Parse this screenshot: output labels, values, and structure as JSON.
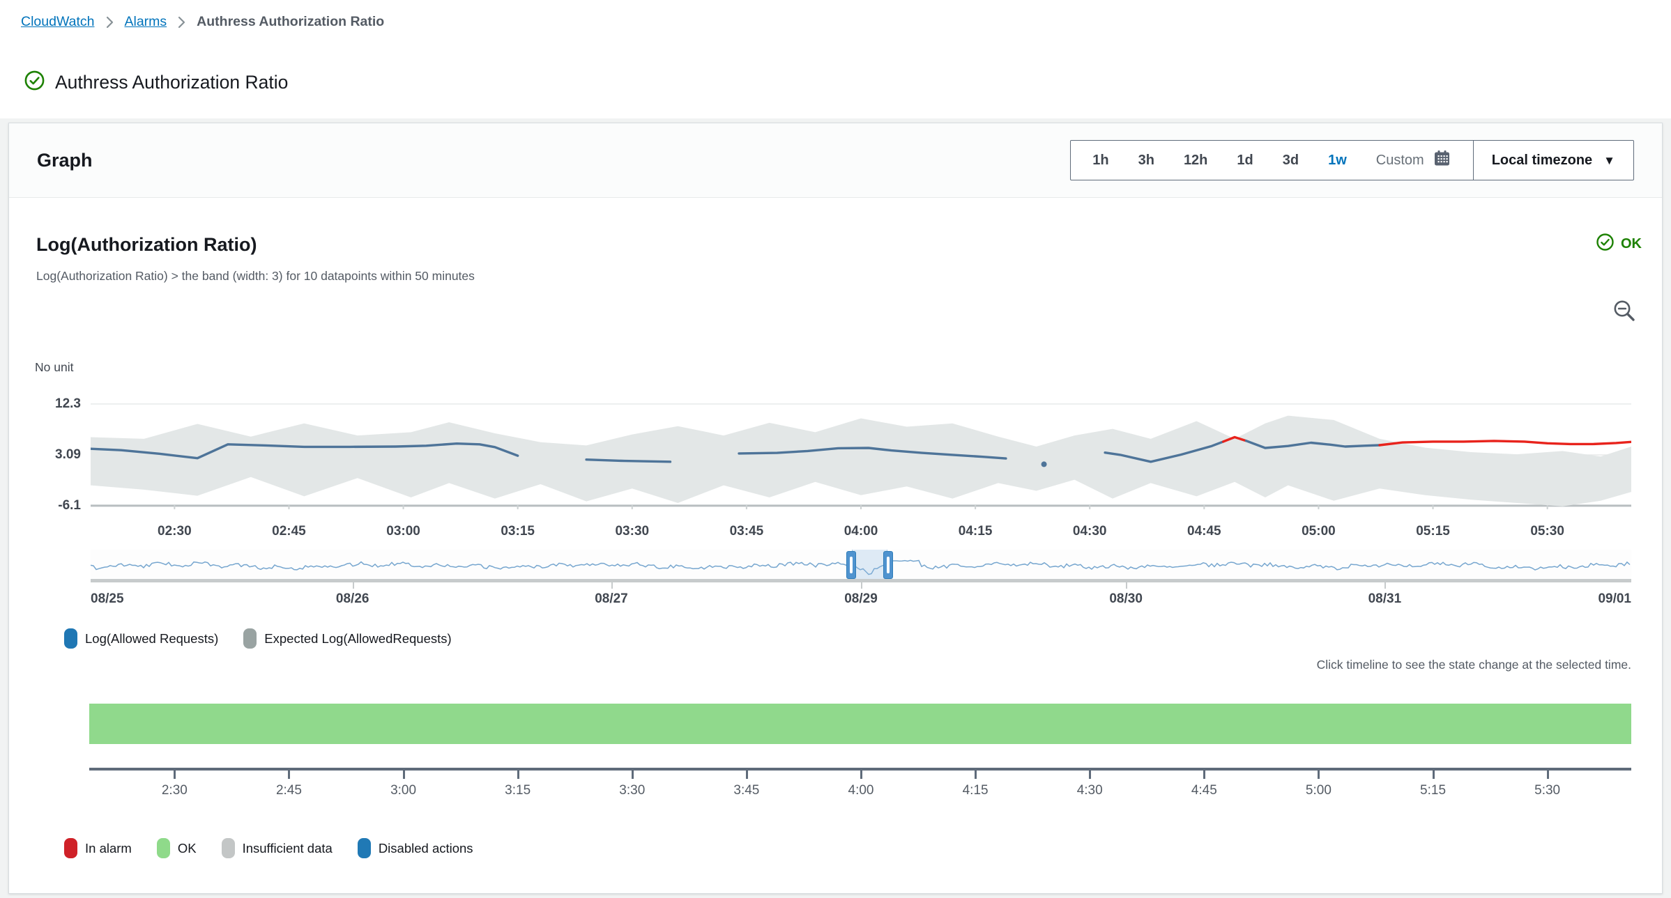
{
  "breadcrumb": {
    "items": [
      {
        "label": "CloudWatch",
        "link": true
      },
      {
        "label": "Alarms",
        "link": true
      },
      {
        "label": "Authress Authorization Ratio",
        "link": false
      }
    ]
  },
  "page": {
    "title": "Authress Authorization Ratio",
    "status": "OK"
  },
  "panel": {
    "title": "Graph",
    "range_buttons": [
      {
        "label": "1h",
        "selected": false
      },
      {
        "label": "3h",
        "selected": false
      },
      {
        "label": "12h",
        "selected": false
      },
      {
        "label": "1d",
        "selected": false
      },
      {
        "label": "3d",
        "selected": false
      },
      {
        "label": "1w",
        "selected": true
      },
      {
        "label": "Custom",
        "selected": false,
        "muted": true,
        "icon": "calendar"
      }
    ],
    "timezone": {
      "label": "Local timezone"
    }
  },
  "widget": {
    "title": "Log(Authorization Ratio)",
    "condition": "Log(Authorization Ratio) > the band (width: 3) for 10 datapoints within 50 minutes",
    "status_label": "OK",
    "status_color": "#1d8102",
    "unit_label": "No unit",
    "hint": "Click timeline to see the state change at the selected time.",
    "legend": [
      {
        "label": "Log(Allowed Requests)",
        "color": "#1f77b4"
      },
      {
        "label": "Expected Log(AllowedRequests)",
        "color": "#99a3a2"
      }
    ],
    "state_legend": [
      {
        "label": "In alarm",
        "color": "#cf2128"
      },
      {
        "label": "OK",
        "color": "#8fda8a"
      },
      {
        "label": "Insufficient data",
        "color": "#c3c6c6"
      },
      {
        "label": "Disabled actions",
        "color": "#2079b5"
      }
    ]
  },
  "chart_data": [
    {
      "type": "line",
      "title": "Log(Authorization Ratio)",
      "ylabel": "No unit",
      "x_unit": "minutes after 02:00 local time",
      "xlim": [
        19,
        221
      ],
      "ylim": [
        -6.9,
        14.2
      ],
      "grid": true,
      "yticks": [
        {
          "value": 12.3,
          "label": "12.3"
        },
        {
          "value": 3.09,
          "label": "3.09"
        },
        {
          "value": -6.1,
          "label": "-6.1"
        }
      ],
      "xticks": [
        {
          "t": 30,
          "label": "02:30"
        },
        {
          "t": 45,
          "label": "02:45"
        },
        {
          "t": 60,
          "label": "03:00"
        },
        {
          "t": 75,
          "label": "03:15"
        },
        {
          "t": 90,
          "label": "03:30"
        },
        {
          "t": 105,
          "label": "03:45"
        },
        {
          "t": 120,
          "label": "04:00"
        },
        {
          "t": 135,
          "label": "04:15"
        },
        {
          "t": 150,
          "label": "04:30"
        },
        {
          "t": 165,
          "label": "04:45"
        },
        {
          "t": 180,
          "label": "05:00"
        },
        {
          "t": 195,
          "label": "05:15"
        },
        {
          "t": 210,
          "label": "05:30"
        }
      ],
      "series": [
        {
          "name": "Expected Log(AllowedRequests)",
          "type": "band",
          "color": "#e3e7e7",
          "points": [
            [
              19,
              6.3,
              -2.4
            ],
            [
              26,
              6.0,
              -3.2
            ],
            [
              33,
              8.7,
              -4.3
            ],
            [
              40,
              6.4,
              -0.9
            ],
            [
              47,
              8.8,
              -4.4
            ],
            [
              54,
              6.6,
              -1.1
            ],
            [
              61,
              7.2,
              -4.6
            ],
            [
              66,
              9.0,
              -2.0
            ],
            [
              72,
              7.0,
              -4.8
            ],
            [
              78,
              5.4,
              -2.2
            ],
            [
              84,
              4.8,
              -5.3
            ],
            [
              90,
              6.8,
              -3.0
            ],
            [
              96,
              8.3,
              -5.6
            ],
            [
              102,
              6.6,
              -2.4
            ],
            [
              108,
              8.9,
              -4.6
            ],
            [
              114,
              7.2,
              -1.8
            ],
            [
              120,
              9.7,
              -4.2
            ],
            [
              126,
              8.2,
              -2.6
            ],
            [
              132,
              8.8,
              -4.8
            ],
            [
              138,
              6.4,
              -2.0
            ],
            [
              143,
              4.6,
              -3.4
            ],
            [
              148,
              6.6,
              -1.4
            ],
            [
              153,
              7.8,
              -4.8
            ],
            [
              158,
              6.0,
              -2.0
            ],
            [
              164,
              9.2,
              -4.4
            ],
            [
              169,
              6.0,
              -1.8
            ],
            [
              173,
              8.8,
              -4.6
            ],
            [
              176,
              10.2,
              -2.4
            ],
            [
              182,
              9.4,
              -5.2
            ],
            [
              188,
              6.0,
              -3.0
            ],
            [
              194,
              4.4,
              -4.2
            ],
            [
              200,
              3.6,
              -5.0
            ],
            [
              206,
              3.2,
              -5.6
            ],
            [
              212,
              3.8,
              -6.2
            ],
            [
              217,
              2.8,
              -5.2
            ],
            [
              221,
              4.6,
              -3.6
            ]
          ]
        },
        {
          "name": "Log(Allowed Requests)",
          "type": "line",
          "color": "#4e7499",
          "alarm_color": "#e8231c",
          "segments": [
            {
              "alarm": false,
              "points": [
                [
                  19,
                  4.2
                ],
                [
                  23,
                  3.95
                ],
                [
                  28,
                  3.3
                ],
                [
                  33,
                  2.5
                ],
                [
                  37,
                  5.0
                ],
                [
                  42,
                  4.8
                ],
                [
                  47,
                  4.55
                ],
                [
                  53,
                  4.55
                ],
                [
                  59,
                  4.6
                ],
                [
                  63,
                  4.75
                ],
                [
                  67,
                  5.15
                ],
                [
                  70,
                  5.0
                ],
                [
                  72,
                  4.5
                ],
                [
                  75,
                  2.95
                ]
              ]
            },
            {
              "alarm": false,
              "points": [
                [
                  84,
                  2.25
                ],
                [
                  89,
                  2.0
                ],
                [
                  95,
                  1.85
                ]
              ]
            },
            {
              "alarm": false,
              "points": [
                [
                  104,
                  3.35
                ],
                [
                  109,
                  3.45
                ],
                [
                  113,
                  3.8
                ],
                [
                  117,
                  4.3
                ],
                [
                  121,
                  4.35
                ],
                [
                  124,
                  3.9
                ],
                [
                  128,
                  3.45
                ],
                [
                  132,
                  3.1
                ],
                [
                  136,
                  2.75
                ],
                [
                  139,
                  2.45
                ]
              ]
            },
            {
              "alarm": false,
              "points": [
                [
                  152,
                  3.5
                ],
                [
                  154,
                  3.1
                ],
                [
                  158,
                  1.85
                ],
                [
                  162,
                  3.15
                ],
                [
                  166,
                  4.7
                ],
                [
                  167.5,
                  5.5
                ]
              ]
            },
            {
              "alarm": true,
              "points": [
                [
                  167.5,
                  5.5
                ],
                [
                  169,
                  6.3
                ],
                [
                  170.5,
                  5.65
                ]
              ]
            },
            {
              "alarm": false,
              "points": [
                [
                  170.5,
                  5.65
                ],
                [
                  173,
                  4.35
                ],
                [
                  176,
                  4.7
                ],
                [
                  179,
                  5.3
                ],
                [
                  181.5,
                  4.95
                ],
                [
                  183.5,
                  4.6
                ],
                [
                  186,
                  4.75
                ],
                [
                  188,
                  4.85
                ]
              ]
            },
            {
              "alarm": true,
              "points": [
                [
                  188,
                  4.85
                ],
                [
                  191,
                  5.35
                ],
                [
                  195,
                  5.5
                ],
                [
                  199,
                  5.5
                ],
                [
                  203,
                  5.62
                ],
                [
                  207,
                  5.5
                ],
                [
                  210,
                  5.2
                ],
                [
                  213,
                  5.05
                ],
                [
                  216,
                  5.05
                ],
                [
                  219,
                  5.25
                ],
                [
                  221,
                  5.45
                ]
              ]
            }
          ],
          "isolated_points": [
            [
              144,
              1.4
            ]
          ]
        }
      ]
    },
    {
      "type": "minimap",
      "line_color": "#6fa1cc",
      "brush": {
        "from": 0.494,
        "to": 0.517
      },
      "date_ticks": [
        {
          "pos": 0.0,
          "label": "08/25"
        },
        {
          "pos": 0.17,
          "label": "08/26"
        },
        {
          "pos": 0.338,
          "label": "08/27"
        },
        {
          "pos": 0.5,
          "label": "08/29"
        },
        {
          "pos": 0.672,
          "label": "08/30"
        },
        {
          "pos": 0.84,
          "label": "08/31"
        },
        {
          "pos": 1.0,
          "label": "09/01"
        }
      ]
    },
    {
      "type": "state-timeline",
      "states": [
        {
          "label": "OK",
          "color": "#90d98c",
          "from": 0,
          "to": 1
        }
      ],
      "xticks": [
        {
          "t": 30,
          "label": "2:30"
        },
        {
          "t": 45,
          "label": "2:45"
        },
        {
          "t": 60,
          "label": "3:00"
        },
        {
          "t": 75,
          "label": "3:15"
        },
        {
          "t": 90,
          "label": "3:30"
        },
        {
          "t": 105,
          "label": "3:45"
        },
        {
          "t": 120,
          "label": "4:00"
        },
        {
          "t": 135,
          "label": "4:15"
        },
        {
          "t": 150,
          "label": "4:30"
        },
        {
          "t": 165,
          "label": "4:45"
        },
        {
          "t": 180,
          "label": "5:00"
        },
        {
          "t": 195,
          "label": "5:15"
        },
        {
          "t": 210,
          "label": "5:30"
        }
      ]
    }
  ]
}
